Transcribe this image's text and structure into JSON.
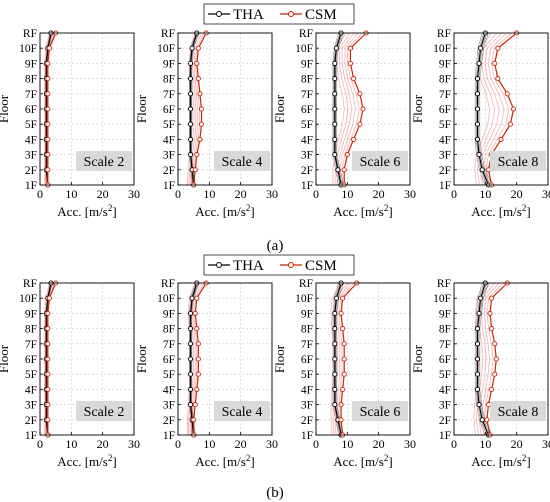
{
  "legend": {
    "items": [
      {
        "label": "THA",
        "color": "#000000",
        "marker": "circle"
      },
      {
        "label": "CSM",
        "color": "#cc2200",
        "marker": "circle"
      }
    ]
  },
  "panel_labels": [
    "(a)",
    "(b)"
  ],
  "chart_data": [
    {
      "type": "line",
      "panel": "(a)",
      "title": "Scale 2",
      "xlabel": "Acc. [m/s2]",
      "ylabel": "Floor",
      "categories": [
        "1F",
        "2F",
        "3F",
        "4F",
        "5F",
        "6F",
        "7F",
        "8F",
        "9F",
        "10F",
        "RF"
      ],
      "xlim": [
        0,
        30
      ],
      "xticks": [
        0,
        10,
        20,
        30
      ],
      "grid": true,
      "series": [
        {
          "name": "THA",
          "values": [
            2.5,
            2.0,
            2.0,
            2.0,
            2.0,
            2.0,
            2.0,
            2.0,
            2.0,
            2.5,
            3.5
          ]
        },
        {
          "name": "CSM",
          "values": [
            2.5,
            2.5,
            2.5,
            2.5,
            2.5,
            2.5,
            2.5,
            2.5,
            2.5,
            3.0,
            5.0
          ]
        }
      ]
    },
    {
      "type": "line",
      "panel": "(a)",
      "title": "Scale 4",
      "xlabel": "Acc. [m/s2]",
      "ylabel": "Floor",
      "categories": [
        "1F",
        "2F",
        "3F",
        "4F",
        "5F",
        "6F",
        "7F",
        "8F",
        "9F",
        "10F",
        "RF"
      ],
      "xlim": [
        0,
        30
      ],
      "xticks": [
        0,
        10,
        20,
        30
      ],
      "grid": true,
      "series": [
        {
          "name": "THA",
          "values": [
            5.0,
            4.5,
            4.0,
            4.0,
            4.0,
            4.0,
            4.0,
            4.0,
            4.0,
            4.5,
            6.0
          ]
        },
        {
          "name": "CSM",
          "values": [
            5.0,
            5.5,
            6.0,
            7.0,
            7.5,
            7.5,
            7.0,
            6.5,
            6.0,
            6.5,
            9.0
          ]
        }
      ]
    },
    {
      "type": "line",
      "panel": "(a)",
      "title": "Scale 6",
      "xlabel": "Acc. [m/s2]",
      "ylabel": "Floor",
      "categories": [
        "1F",
        "2F",
        "3F",
        "4F",
        "5F",
        "6F",
        "7F",
        "8F",
        "9F",
        "10F",
        "RF"
      ],
      "xlim": [
        0,
        30
      ],
      "xticks": [
        0,
        10,
        20,
        30
      ],
      "grid": true,
      "series": [
        {
          "name": "THA",
          "values": [
            8.0,
            7.0,
            6.0,
            6.0,
            6.0,
            6.0,
            6.0,
            6.0,
            6.0,
            6.5,
            8.0
          ]
        },
        {
          "name": "CSM",
          "values": [
            9.0,
            9.0,
            10.0,
            12.0,
            14.0,
            15.0,
            14.0,
            12.0,
            11.0,
            11.0,
            16.0
          ]
        }
      ]
    },
    {
      "type": "line",
      "panel": "(a)",
      "title": "Scale 8",
      "xlabel": "Acc. [m/s2]",
      "ylabel": "Floor",
      "categories": [
        "1F",
        "2F",
        "3F",
        "4F",
        "5F",
        "6F",
        "7F",
        "8F",
        "9F",
        "10F",
        "RF"
      ],
      "xlim": [
        0,
        30
      ],
      "xticks": [
        0,
        10,
        20,
        30
      ],
      "grid": true,
      "series": [
        {
          "name": "THA",
          "values": [
            11.0,
            9.0,
            8.0,
            7.5,
            7.5,
            7.5,
            7.5,
            7.5,
            8.0,
            8.5,
            10.0
          ]
        },
        {
          "name": "CSM",
          "values": [
            12.0,
            11.0,
            12.0,
            15.0,
            18.0,
            19.0,
            17.0,
            14.0,
            13.0,
            14.0,
            20.0
          ]
        }
      ]
    },
    {
      "type": "line",
      "panel": "(b)",
      "title": "Scale 2",
      "xlabel": "Acc. [m/s2]",
      "ylabel": "Floor",
      "categories": [
        "1F",
        "2F",
        "3F",
        "4F",
        "5F",
        "6F",
        "7F",
        "8F",
        "9F",
        "10F",
        "RF"
      ],
      "xlim": [
        0,
        30
      ],
      "xticks": [
        0,
        10,
        20,
        30
      ],
      "grid": true,
      "series": [
        {
          "name": "THA",
          "values": [
            2.5,
            2.0,
            2.0,
            2.0,
            2.0,
            2.0,
            2.0,
            2.0,
            2.0,
            2.5,
            3.5
          ]
        },
        {
          "name": "CSM",
          "values": [
            2.5,
            2.5,
            2.5,
            2.5,
            2.5,
            2.5,
            2.5,
            2.5,
            2.5,
            3.0,
            5.0
          ]
        }
      ]
    },
    {
      "type": "line",
      "panel": "(b)",
      "title": "Scale 4",
      "xlabel": "Acc. [m/s2]",
      "ylabel": "Floor",
      "categories": [
        "1F",
        "2F",
        "3F",
        "4F",
        "5F",
        "6F",
        "7F",
        "8F",
        "9F",
        "10F",
        "RF"
      ],
      "xlim": [
        0,
        30
      ],
      "xticks": [
        0,
        10,
        20,
        30
      ],
      "grid": true,
      "series": [
        {
          "name": "THA",
          "values": [
            5.0,
            4.5,
            4.0,
            4.0,
            4.0,
            4.0,
            4.0,
            4.0,
            4.0,
            4.5,
            6.0
          ]
        },
        {
          "name": "CSM",
          "values": [
            5.0,
            5.0,
            5.5,
            6.0,
            6.5,
            6.5,
            6.5,
            6.0,
            5.5,
            6.0,
            9.0
          ]
        }
      ]
    },
    {
      "type": "line",
      "panel": "(b)",
      "title": "Scale 6",
      "xlabel": "Acc. [m/s2]",
      "ylabel": "Floor",
      "categories": [
        "1F",
        "2F",
        "3F",
        "4F",
        "5F",
        "6F",
        "7F",
        "8F",
        "9F",
        "10F",
        "RF"
      ],
      "xlim": [
        0,
        30
      ],
      "xticks": [
        0,
        10,
        20,
        30
      ],
      "grid": true,
      "series": [
        {
          "name": "THA",
          "values": [
            8.0,
            7.0,
            6.0,
            6.0,
            6.0,
            6.0,
            6.0,
            6.0,
            6.0,
            6.5,
            8.0
          ]
        },
        {
          "name": "CSM",
          "values": [
            8.5,
            8.0,
            8.0,
            8.5,
            9.0,
            9.0,
            9.0,
            8.5,
            8.0,
            8.5,
            13.0
          ]
        }
      ]
    },
    {
      "type": "line",
      "panel": "(b)",
      "title": "Scale 8",
      "xlabel": "Acc. [m/s2]",
      "ylabel": "Floor",
      "categories": [
        "1F",
        "2F",
        "3F",
        "4F",
        "5F",
        "6F",
        "7F",
        "8F",
        "9F",
        "10F",
        "RF"
      ],
      "xlim": [
        0,
        30
      ],
      "xticks": [
        0,
        10,
        20,
        30
      ],
      "grid": true,
      "series": [
        {
          "name": "THA",
          "values": [
            11.0,
            9.0,
            8.0,
            7.5,
            7.5,
            7.5,
            7.5,
            7.5,
            8.0,
            8.5,
            10.0
          ]
        },
        {
          "name": "CSM",
          "values": [
            11.5,
            10.5,
            11.0,
            12.0,
            13.0,
            13.5,
            13.0,
            12.0,
            11.5,
            12.0,
            17.0
          ]
        }
      ]
    }
  ]
}
